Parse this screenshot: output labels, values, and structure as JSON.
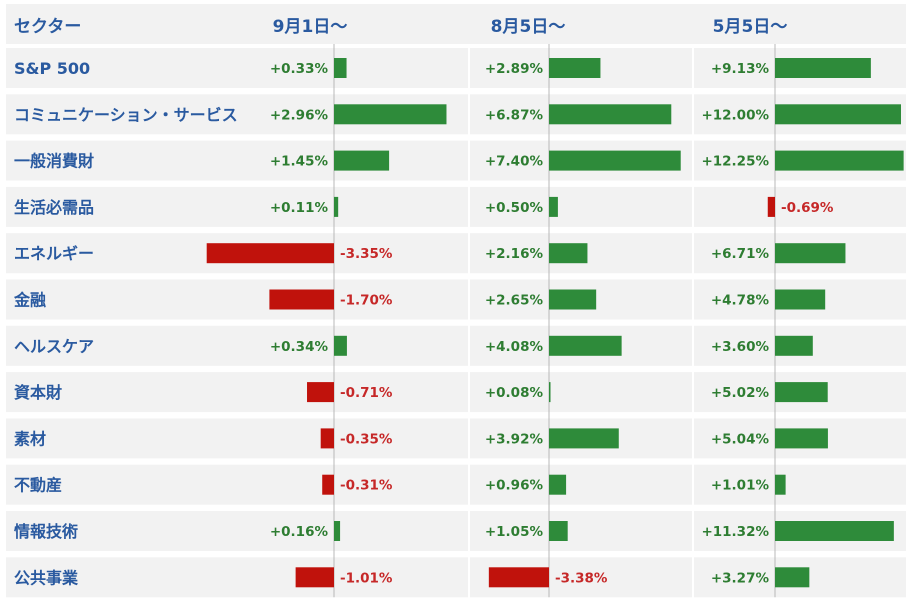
{
  "chart_data": {
    "type": "bar",
    "header_label": "セクター",
    "columns": [
      "9月1日～",
      "8月5日～",
      "5月5日～"
    ],
    "categories": [
      "S&P 500",
      "コミュニケーション・サービス",
      "一般消費財",
      "生活必需品",
      "エネルギー",
      "金融",
      "ヘルスケア",
      "資本財",
      "素材",
      "不動産",
      "情報技術",
      "公共事業"
    ],
    "series": [
      {
        "values": [
          0.33,
          2.96,
          1.45,
          0.11,
          -3.35,
          -1.7,
          0.34,
          -0.71,
          -0.35,
          -0.31,
          0.16,
          -1.01
        ],
        "labels": [
          "+0.33%",
          "+2.96%",
          "+1.45%",
          "+0.11%",
          "-3.35%",
          "-1.70%",
          "+0.34%",
          "-0.71%",
          "-0.35%",
          "-0.31%",
          "+0.16%",
          "-1.01%"
        ]
      },
      {
        "values": [
          2.89,
          6.87,
          7.4,
          0.5,
          2.16,
          2.65,
          4.08,
          0.08,
          3.92,
          0.96,
          1.05,
          -3.38
        ],
        "labels": [
          "+2.89%",
          "+6.87%",
          "+7.40%",
          "+0.50%",
          "+2.16%",
          "+2.65%",
          "+4.08%",
          "+0.08%",
          "+3.92%",
          "+0.96%",
          "+1.05%",
          "-3.38%"
        ]
      },
      {
        "values": [
          9.13,
          12.0,
          12.25,
          -0.69,
          6.71,
          4.78,
          3.6,
          5.02,
          5.04,
          1.01,
          11.32,
          3.27
        ],
        "labels": [
          "+9.13%",
          "+12.00%",
          "+12.25%",
          "-0.69%",
          "+6.71%",
          "+4.78%",
          "+3.60%",
          "+5.02%",
          "+5.04%",
          "+1.01%",
          "+11.32%",
          "+3.27%"
        ]
      }
    ],
    "colors": {
      "positive": "#2e8b3a",
      "negative": "#c0120c",
      "positive_text": "#2e7d32",
      "negative_text": "#c62828",
      "header_text": "#2a5aa0",
      "category_text": "#2a5aa0",
      "row_background": "#f2f2f2",
      "axis": "#b8b8b8"
    }
  }
}
